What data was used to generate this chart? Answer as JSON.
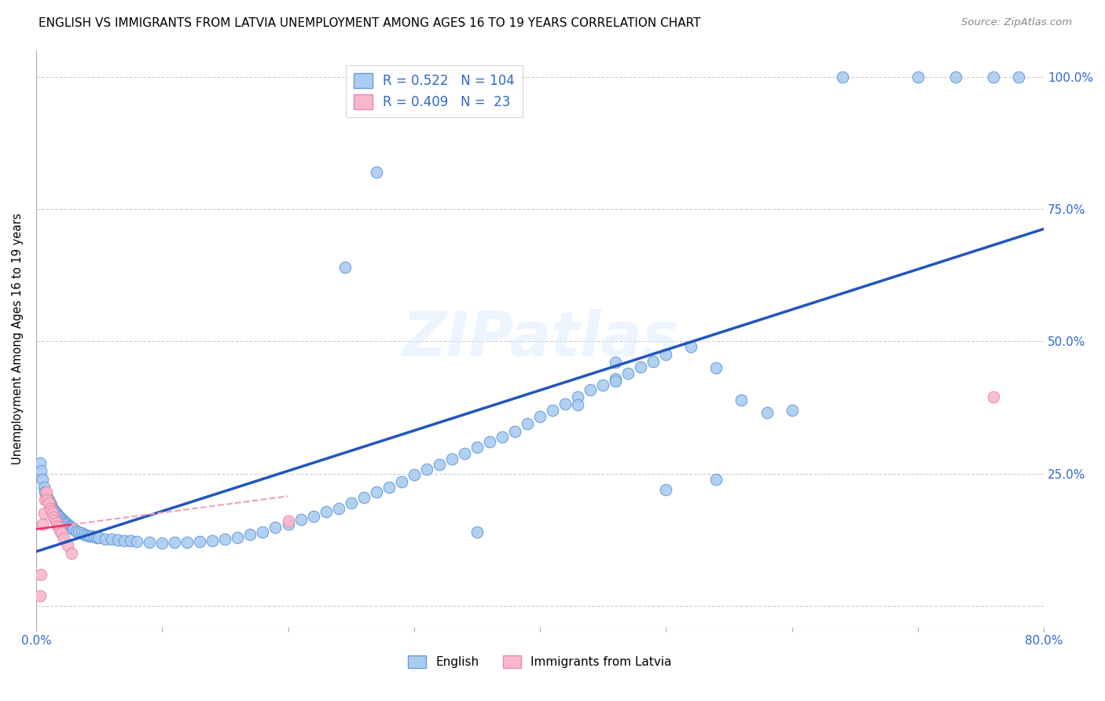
{
  "title": "ENGLISH VS IMMIGRANTS FROM LATVIA UNEMPLOYMENT AMONG AGES 16 TO 19 YEARS CORRELATION CHART",
  "source": "Source: ZipAtlas.com",
  "ylabel": "Unemployment Among Ages 16 to 19 years",
  "xmin": 0.0,
  "xmax": 0.8,
  "ymin": -0.04,
  "ymax": 1.05,
  "yticks": [
    0.0,
    0.25,
    0.5,
    0.75,
    1.0
  ],
  "ytick_labels_right": [
    "",
    "25.0%",
    "50.0%",
    "75.0%",
    "100.0%"
  ],
  "xtick_positions": [
    0.0,
    0.1,
    0.2,
    0.3,
    0.4,
    0.5,
    0.6,
    0.7,
    0.8
  ],
  "xtick_labels": [
    "0.0%",
    "",
    "",
    "",
    "",
    "",
    "",
    "",
    "80.0%"
  ],
  "watermark_text": "ZIPatlas",
  "english_color": "#aaccf0",
  "english_edge": "#6699dd",
  "latvia_color": "#f8b8cc",
  "latvia_edge": "#ee88aa",
  "trend_english_color": "#2255bb",
  "trend_latvia_solid_color": "#ee3366",
  "trend_latvia_dash_color": "#f0a0b8",
  "R_english": 0.522,
  "N_english": 104,
  "R_latvia": 0.409,
  "N_latvia": 23,
  "english_x": [
    0.003,
    0.004,
    0.005,
    0.006,
    0.007,
    0.008,
    0.009,
    0.01,
    0.011,
    0.012,
    0.013,
    0.014,
    0.015,
    0.016,
    0.017,
    0.018,
    0.019,
    0.02,
    0.021,
    0.022,
    0.023,
    0.024,
    0.025,
    0.026,
    0.027,
    0.028,
    0.029,
    0.03,
    0.032,
    0.034,
    0.036,
    0.038,
    0.04,
    0.042,
    0.044,
    0.046,
    0.048,
    0.05,
    0.055,
    0.06,
    0.065,
    0.07,
    0.075,
    0.08,
    0.09,
    0.1,
    0.11,
    0.12,
    0.13,
    0.14,
    0.15,
    0.16,
    0.17,
    0.18,
    0.19,
    0.2,
    0.21,
    0.22,
    0.23,
    0.24,
    0.25,
    0.26,
    0.27,
    0.28,
    0.29,
    0.3,
    0.31,
    0.32,
    0.33,
    0.34,
    0.35,
    0.36,
    0.37,
    0.38,
    0.39,
    0.4,
    0.41,
    0.42,
    0.43,
    0.44,
    0.45,
    0.46,
    0.47,
    0.48,
    0.49,
    0.5,
    0.52,
    0.54,
    0.56,
    0.58,
    0.6,
    0.64,
    0.7,
    0.73,
    0.76,
    0.78,
    0.27,
    0.245,
    0.46,
    0.46,
    0.43,
    0.35,
    0.5,
    0.54
  ],
  "english_y": [
    0.27,
    0.255,
    0.24,
    0.225,
    0.215,
    0.21,
    0.205,
    0.2,
    0.195,
    0.19,
    0.185,
    0.182,
    0.178,
    0.175,
    0.172,
    0.17,
    0.168,
    0.165,
    0.162,
    0.16,
    0.158,
    0.156,
    0.154,
    0.152,
    0.15,
    0.148,
    0.146,
    0.145,
    0.142,
    0.14,
    0.138,
    0.136,
    0.134,
    0.133,
    0.132,
    0.131,
    0.13,
    0.129,
    0.127,
    0.126,
    0.125,
    0.124,
    0.123,
    0.122,
    0.12,
    0.119,
    0.12,
    0.121,
    0.122,
    0.124,
    0.127,
    0.13,
    0.135,
    0.14,
    0.148,
    0.155,
    0.163,
    0.17,
    0.178,
    0.185,
    0.195,
    0.205,
    0.215,
    0.225,
    0.235,
    0.248,
    0.258,
    0.268,
    0.278,
    0.288,
    0.3,
    0.31,
    0.32,
    0.33,
    0.345,
    0.358,
    0.37,
    0.382,
    0.395,
    0.408,
    0.418,
    0.43,
    0.44,
    0.452,
    0.462,
    0.475,
    0.49,
    0.45,
    0.39,
    0.365,
    0.37,
    1.0,
    1.0,
    1.0,
    1.0,
    1.0,
    0.82,
    0.64,
    0.46,
    0.425,
    0.38,
    0.14,
    0.22,
    0.24
  ],
  "latvia_x": [
    0.003,
    0.004,
    0.005,
    0.006,
    0.007,
    0.008,
    0.009,
    0.01,
    0.011,
    0.012,
    0.013,
    0.014,
    0.015,
    0.016,
    0.017,
    0.018,
    0.019,
    0.02,
    0.022,
    0.025,
    0.028,
    0.2,
    0.76
  ],
  "latvia_y": [
    0.02,
    0.06,
    0.155,
    0.175,
    0.2,
    0.215,
    0.2,
    0.195,
    0.185,
    0.18,
    0.175,
    0.168,
    0.162,
    0.158,
    0.152,
    0.148,
    0.143,
    0.138,
    0.128,
    0.115,
    0.1,
    0.16,
    0.395
  ]
}
